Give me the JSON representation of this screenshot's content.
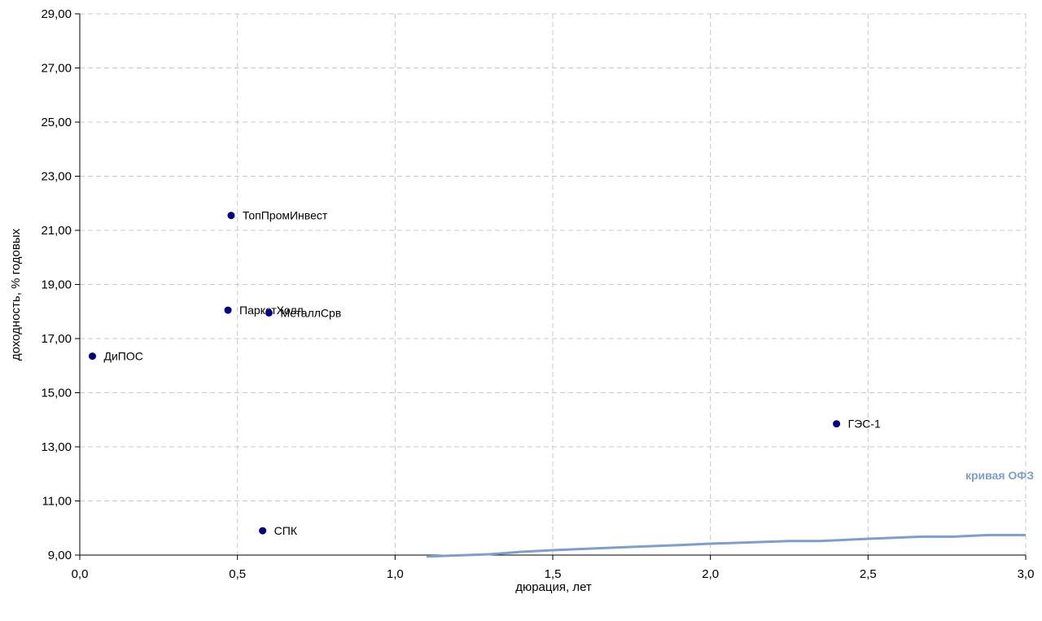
{
  "chart_data": {
    "type": "scatter",
    "xlabel": "дюрация, лет",
    "ylabel": "доходность, % годовых",
    "xlim": [
      0,
      3
    ],
    "ylim": [
      9,
      29
    ],
    "x_ticks": [
      "0,0",
      "0,5",
      "1,0",
      "1,5",
      "2,0",
      "2,5",
      "3,0"
    ],
    "y_ticks": [
      "9,00",
      "11,00",
      "13,00",
      "15,00",
      "17,00",
      "19,00",
      "21,00",
      "23,00",
      "25,00",
      "27,00",
      "29,00"
    ],
    "grid": true,
    "point_color": "#000080",
    "curve_color": "#7f9fc8",
    "points": [
      {
        "label": "ТопПромИнвест",
        "x": 0.48,
        "y": 21.55
      },
      {
        "label": "ПаркетХолл",
        "x": 0.47,
        "y": 18.05
      },
      {
        "label": "МеталлСрв",
        "x": 0.6,
        "y": 17.95
      },
      {
        "label": "ДиПОС",
        "x": 0.04,
        "y": 16.35
      },
      {
        "label": "ГЭС-1",
        "x": 2.4,
        "y": 13.85
      },
      {
        "label": "СПК",
        "x": 0.58,
        "y": 9.9
      }
    ],
    "curve": {
      "name": "кривая ОФЗ",
      "x": [
        1.1,
        1.3,
        1.4,
        1.5,
        1.7,
        1.9,
        2.0,
        2.25,
        2.35,
        2.5,
        2.67,
        2.77,
        2.88,
        3.0
      ],
      "y": [
        8.95,
        9.03,
        9.12,
        9.18,
        9.28,
        9.37,
        9.42,
        9.52,
        9.52,
        9.6,
        9.68,
        9.68,
        9.74,
        9.74
      ]
    }
  }
}
